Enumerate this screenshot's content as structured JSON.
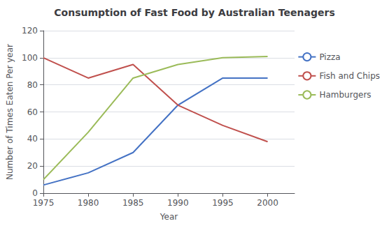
{
  "chart_data": {
    "type": "line",
    "title": "Consumption of Fast Food by Australian Teenagers",
    "x_label": "Year",
    "y_label": "Number of Times Eaten Per year",
    "x": [
      1975,
      1980,
      1985,
      1990,
      1995,
      2000
    ],
    "series": [
      {
        "name": "Pizza",
        "color": "#4472C4",
        "values": [
          6,
          15,
          30,
          65,
          85,
          85
        ]
      },
      {
        "name": "Fish and Chips",
        "color": "#C0504D",
        "values": [
          100,
          85,
          95,
          65,
          50,
          38
        ]
      },
      {
        "name": "Hamburgers",
        "color": "#9BBB59",
        "values": [
          10,
          45,
          85,
          95,
          100,
          101
        ]
      }
    ],
    "xlim": [
      1975,
      2003
    ],
    "xticks": [
      1975,
      1980,
      1985,
      1990,
      1995,
      2000
    ],
    "ylim": [
      0,
      120
    ],
    "yticks": [
      0,
      20,
      40,
      60,
      80,
      100,
      120
    ],
    "grid": true,
    "legend": "right"
  }
}
